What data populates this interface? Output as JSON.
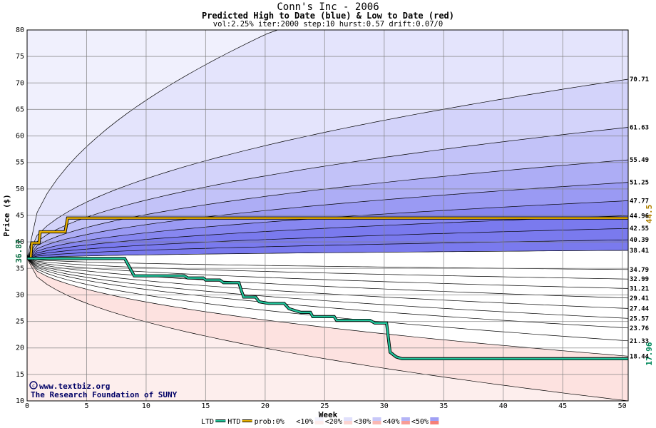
{
  "chart_data": {
    "type": "area",
    "title": "Conn's Inc - 2006",
    "subtitle": "Predicted High to Date (blue) &  Low to Date (red)",
    "params": "vol:2.25% iter:2000 step:10 hurst:0.57 drift:0.07/0",
    "xlabel": "Week",
    "ylabel": "Price ($)",
    "xlim": [
      0,
      50.5
    ],
    "ylim": [
      10,
      80
    ],
    "x_ticks": [
      0,
      5,
      10,
      15,
      20,
      25,
      30,
      35,
      40,
      45,
      50
    ],
    "y_ticks": [
      10,
      15,
      20,
      25,
      30,
      35,
      40,
      45,
      50,
      55,
      60,
      65,
      70,
      75,
      80
    ],
    "grid": true,
    "start_price": 36.87,
    "start_label": "36.87",
    "htd_last_label": "44.5",
    "ltd_last_label": "17.96",
    "right_labels": [
      "70.71",
      "61.63",
      "55.49",
      "51.25",
      "47.77",
      "44.96",
      "42.55",
      "40.39",
      "38.41",
      "34.79",
      "32.99",
      "31.21",
      "29.41",
      "27.44",
      "25.57",
      "23.76",
      "21.33",
      "18.44"
    ],
    "high_quantile_ends": [
      70.71,
      61.63,
      55.49,
      51.25,
      47.77,
      44.96,
      42.55,
      40.39,
      38.41
    ],
    "low_quantile_ends": [
      34.79,
      32.99,
      31.21,
      29.41,
      27.44,
      25.57,
      23.76,
      21.33,
      18.44
    ],
    "outer_high_end": 80,
    "outer_low_end": 10,
    "htd_series": [
      [
        0,
        36.87
      ],
      [
        0.3,
        36.87
      ],
      [
        0.4,
        39.8
      ],
      [
        1,
        39.8
      ],
      [
        1.1,
        41.9
      ],
      [
        3.2,
        41.9
      ],
      [
        3.4,
        44.5
      ],
      [
        50.5,
        44.5
      ]
    ],
    "ltd_series": [
      [
        0,
        36.87
      ],
      [
        8.2,
        36.87
      ],
      [
        9,
        33.6
      ],
      [
        13.2,
        33.6
      ],
      [
        13.5,
        33.2
      ],
      [
        14.8,
        33.2
      ],
      [
        15,
        32.8
      ],
      [
        16.2,
        32.8
      ],
      [
        16.5,
        32.3
      ],
      [
        17.8,
        32.3
      ],
      [
        18,
        30.8
      ],
      [
        18.2,
        29.6
      ],
      [
        19.2,
        29.6
      ],
      [
        19.5,
        28.7
      ],
      [
        20.3,
        28.4
      ],
      [
        21.6,
        28.4
      ],
      [
        22,
        27.4
      ],
      [
        23,
        26.7
      ],
      [
        23.8,
        26.7
      ],
      [
        24,
        25.9
      ],
      [
        25.8,
        25.9
      ],
      [
        26,
        25.2
      ],
      [
        28.8,
        25.2
      ],
      [
        29.2,
        24.7
      ],
      [
        30.2,
        24.7
      ],
      [
        30.5,
        19.2
      ],
      [
        31,
        18.3
      ],
      [
        31.5,
        17.96
      ],
      [
        50.5,
        17.96
      ]
    ],
    "legend": [
      "LTD",
      "HTD",
      "prob:0%",
      "<10%",
      "<20%",
      "<30%",
      "<40%",
      "<50%"
    ],
    "colors": {
      "htd": "#e8b000",
      "ltd": "#22c39a",
      "high_bands": [
        "#f0f0fd",
        "#e4e4fc",
        "#d3d3fa",
        "#c2c2f8",
        "#adadf5",
        "#9a9af3",
        "#8787f0",
        "#7a7aee"
      ],
      "low_bands": [
        "#fdeeed",
        "#fde2e0",
        "#fcd0cd",
        "#fbbab6",
        "#faa8a3",
        "#f99791",
        "#f8857f",
        "#f67a73"
      ],
      "grid": "#7f7f7f",
      "label_blue": "#000066",
      "start_label": "#006a3c",
      "htd_label": "#b08000",
      "ltd_label": "#00885a"
    },
    "legend_colors": [
      "#ffffff",
      "#f3f3fd",
      "#e0e0fb",
      "#c8c8f8",
      "#b4b4f6",
      "#a0a0f4"
    ],
    "legend_colors_red": [
      "#ffffff",
      "#fdecea",
      "#fbd4d1",
      "#f9b8b3",
      "#f89c96",
      "#f67f78"
    ]
  },
  "watermark": {
    "line1": "www.textbiz.org",
    "line2": "The Research Foundation of SUNY"
  }
}
